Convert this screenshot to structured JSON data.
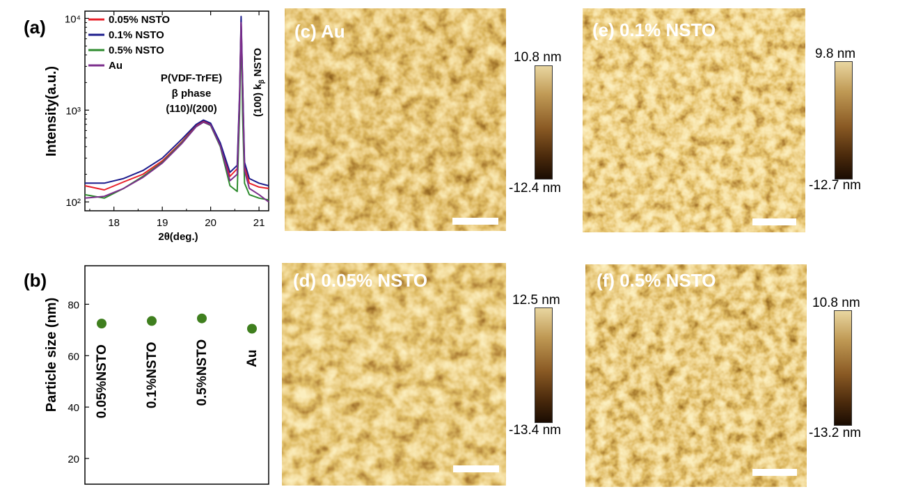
{
  "panels": {
    "a": {
      "label": "(a)"
    },
    "b": {
      "label": "(b)"
    }
  },
  "chart_data": [
    {
      "type": "line",
      "ylabel": "Intensity(a.u.)",
      "xlabel": "2θ(deg.)",
      "x_ticks": [
        "18",
        "19",
        "20",
        "21"
      ],
      "y_ticks": [
        "10²",
        "10³",
        "10⁴"
      ],
      "xlim": [
        17.4,
        21.2
      ],
      "ylim_log": [
        80,
        12000
      ],
      "yscale": "log",
      "legend_position": "top-left",
      "legend": [
        {
          "name": "0.05% NSTO",
          "color": "#e8202a"
        },
        {
          "name": "0.1% NSTO",
          "color": "#1c1c8c"
        },
        {
          "name": "0.5% NSTO",
          "color": "#2e8b2e"
        },
        {
          "name": "Au",
          "color": "#7b2d8b"
        }
      ],
      "annotations": {
        "phase_line1": "P(VDF-TrFE)",
        "phase_line2": "β phase",
        "phase_line3": "(110)/(200)",
        "nsto_peak": "(100) k",
        "nsto_peak_sub": "β",
        "nsto_peak_tail": " NSTO"
      },
      "series": [
        {
          "name": "0.05% NSTO",
          "x": [
            17.4,
            17.8,
            18.2,
            18.6,
            19.0,
            19.4,
            19.7,
            19.85,
            20.0,
            20.2,
            20.4,
            20.55,
            20.6,
            20.63,
            20.66,
            20.7,
            20.8,
            21.0,
            21.2
          ],
          "y": [
            150,
            135,
            165,
            200,
            280,
            450,
            680,
            760,
            700,
            420,
            190,
            230,
            1500,
            9600,
            2000,
            250,
            160,
            145,
            140
          ]
        },
        {
          "name": "0.1% NSTO",
          "x": [
            17.4,
            17.8,
            18.2,
            18.6,
            19.0,
            19.4,
            19.7,
            19.85,
            20.0,
            20.2,
            20.4,
            20.55,
            20.6,
            20.63,
            20.66,
            20.7,
            20.8,
            21.0,
            21.2
          ],
          "y": [
            160,
            160,
            180,
            220,
            300,
            480,
            700,
            780,
            720,
            440,
            210,
            250,
            1600,
            10500,
            2100,
            270,
            180,
            160,
            150
          ]
        },
        {
          "name": "0.5% NSTO",
          "x": [
            17.4,
            17.8,
            18.2,
            18.6,
            19.0,
            19.4,
            19.7,
            19.85,
            20.0,
            20.2,
            20.4,
            20.55,
            20.6,
            20.63,
            20.66,
            20.7,
            20.8,
            21.0,
            21.2
          ],
          "y": [
            120,
            110,
            140,
            190,
            270,
            440,
            660,
            740,
            680,
            400,
            150,
            130,
            1000,
            8000,
            900,
            160,
            120,
            110,
            105
          ]
        },
        {
          "name": "Au",
          "x": [
            17.4,
            17.8,
            18.2,
            18.6,
            19.0,
            19.4,
            19.7,
            19.85,
            20.0,
            20.2,
            20.4,
            20.55,
            20.6,
            20.63,
            20.66,
            20.7,
            20.8,
            21.0,
            21.2
          ],
          "y": [
            110,
            115,
            140,
            185,
            265,
            430,
            660,
            740,
            690,
            410,
            170,
            200,
            1400,
            9000,
            1800,
            220,
            140,
            120,
            100
          ]
        }
      ]
    },
    {
      "type": "scatter",
      "ylabel": "Particle size (nm)",
      "y_ticks": [
        "20",
        "40",
        "60",
        "80"
      ],
      "ylim": [
        10,
        95
      ],
      "categories": [
        "0.05%NSTO",
        "0.1%NSTO",
        "0.5%NSTO",
        "Au"
      ],
      "values": [
        72.5,
        73.5,
        74.5,
        70.5
      ],
      "marker_color": "#3f7f1e"
    }
  ],
  "afm": [
    {
      "title": "(c) Au",
      "cb_max": "10.8 nm",
      "cb_min": "-12.4 nm"
    },
    {
      "title": "(e) 0.1% NSTO",
      "cb_max": "9.8 nm",
      "cb_min": "-12.7 nm"
    },
    {
      "title": "(d) 0.05% NSTO",
      "cb_max": "12.5 nm",
      "cb_min": "-13.4 nm"
    },
    {
      "title": "(f) 0.5% NSTO",
      "cb_max": "10.8 nm",
      "cb_min": "-13.2 nm"
    }
  ]
}
